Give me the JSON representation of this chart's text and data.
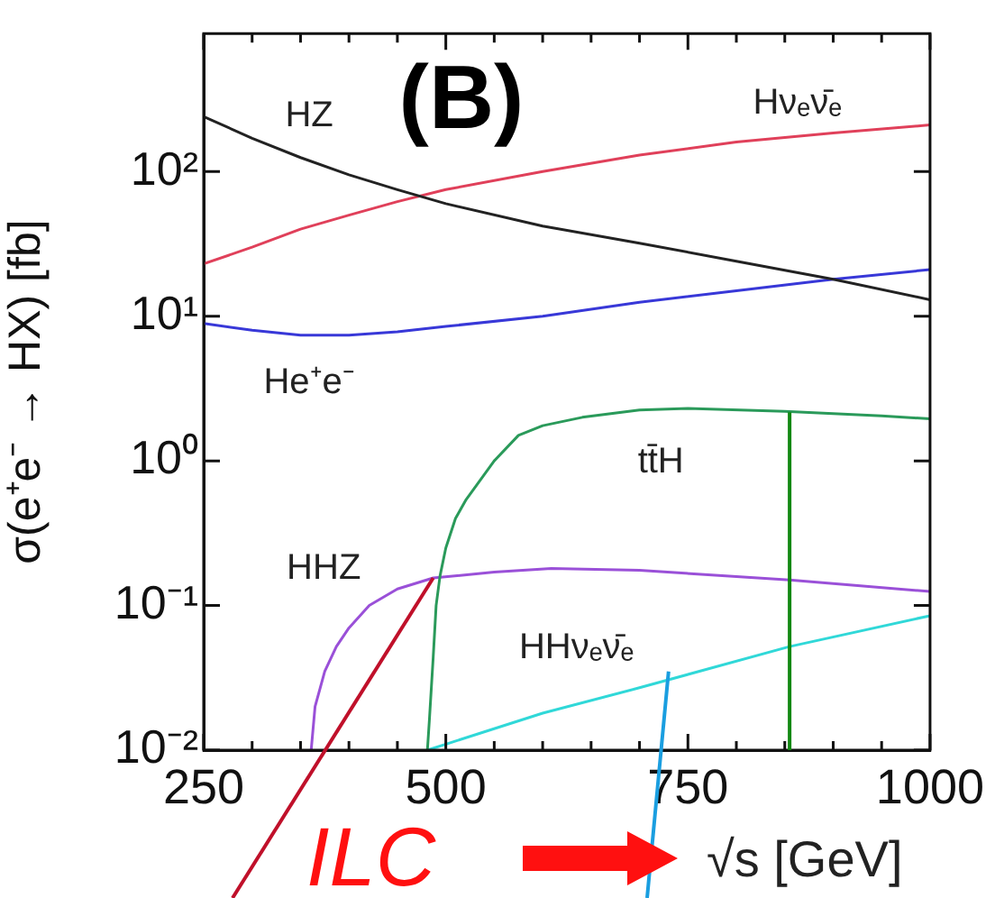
{
  "chart_data": {
    "type": "line",
    "title": "(B)",
    "xlabel": "√s [GeV]",
    "ylabel": "σ(e⁺e⁻ → HX) [fb]",
    "log": "y",
    "xlim": [
      250,
      1000
    ],
    "ylim": [
      0.01,
      900
    ],
    "xticks": [
      250,
      {
        "value": 300,
        "label": null
      },
      {
        "value": 350,
        "label": null
      },
      {
        "value": 400,
        "label": null
      },
      {
        "value": 450,
        "label": null
      },
      500,
      {
        "value": 550,
        "label": null
      },
      {
        "value": 600,
        "label": null
      },
      {
        "value": 650,
        "label": null
      },
      {
        "value": 700,
        "label": null
      },
      750,
      {
        "value": 800,
        "label": null
      },
      {
        "value": 850,
        "label": null
      },
      {
        "value": 900,
        "label": null
      },
      {
        "value": 950,
        "label": null
      },
      1000
    ],
    "yticks": [
      {
        "value": 0.01,
        "label": "10⁻²"
      },
      {
        "value": 0.1,
        "label": "10⁻¹"
      },
      {
        "value": 1,
        "label": "10⁰"
      },
      {
        "value": 10,
        "label": "10¹"
      },
      {
        "value": 100,
        "label": "10²"
      }
    ],
    "grid": false,
    "legend": false,
    "marker": "none",
    "line_style": "solid",
    "series": [
      {
        "name": "HZ",
        "color": "#222222",
        "x": [
          250,
          300,
          350,
          400,
          450,
          500,
          600,
          700,
          800,
          900,
          1000
        ],
        "values": [
          240,
          170,
          125,
          95,
          75,
          60,
          42,
          32,
          24,
          18,
          13
        ]
      },
      {
        "name": "Hνₑν̄ₑ",
        "color": "#e0405a",
        "x": [
          250,
          300,
          350,
          400,
          450,
          500,
          600,
          700,
          800,
          900,
          1000
        ],
        "values": [
          23,
          30,
          40,
          50,
          62,
          75,
          100,
          130,
          160,
          185,
          210
        ]
      },
      {
        "name": "He⁺e⁻",
        "color": "#3838d8",
        "x": [
          250,
          300,
          350,
          400,
          450,
          500,
          600,
          700,
          800,
          900,
          1000
        ],
        "values": [
          8.9,
          8,
          7.4,
          7.4,
          7.8,
          8.5,
          10,
          12.5,
          15,
          18,
          21
        ]
      },
      {
        "name": "tt̄H",
        "color": "#2a9a5a",
        "x": [
          481,
          483,
          487,
          490,
          494,
          500,
          510,
          521,
          550,
          575,
          600,
          641,
          700,
          750,
          850,
          950,
          1000
        ],
        "values": [
          0.01,
          0.016,
          0.044,
          0.1,
          0.16,
          0.25,
          0.4,
          0.54,
          1.0,
          1.5,
          1.75,
          2.0,
          2.25,
          2.3,
          2.2,
          2.05,
          1.95
        ]
      },
      {
        "name": "HHZ",
        "color": "#9a50d8",
        "x": [
          361,
          365,
          375,
          387,
          400,
          421,
          450,
          487,
          550,
          609,
          700,
          855,
          1000
        ],
        "values": [
          0.01,
          0.02,
          0.035,
          0.052,
          0.07,
          0.1,
          0.13,
          0.155,
          0.17,
          0.18,
          0.175,
          0.15,
          0.125
        ]
      },
      {
        "name": "HHνₑν̄ₑ",
        "color": "#30d8d8",
        "x": [
          481,
          600,
          700,
          855,
          1000
        ],
        "values": [
          0.01,
          0.018,
          0.027,
          0.052,
          0.085
        ]
      }
    ],
    "ref_lines": [
      {
        "axis": "x",
        "value": 855,
        "color": "#118811"
      }
    ],
    "annotations": [
      "ILC"
    ]
  }
}
